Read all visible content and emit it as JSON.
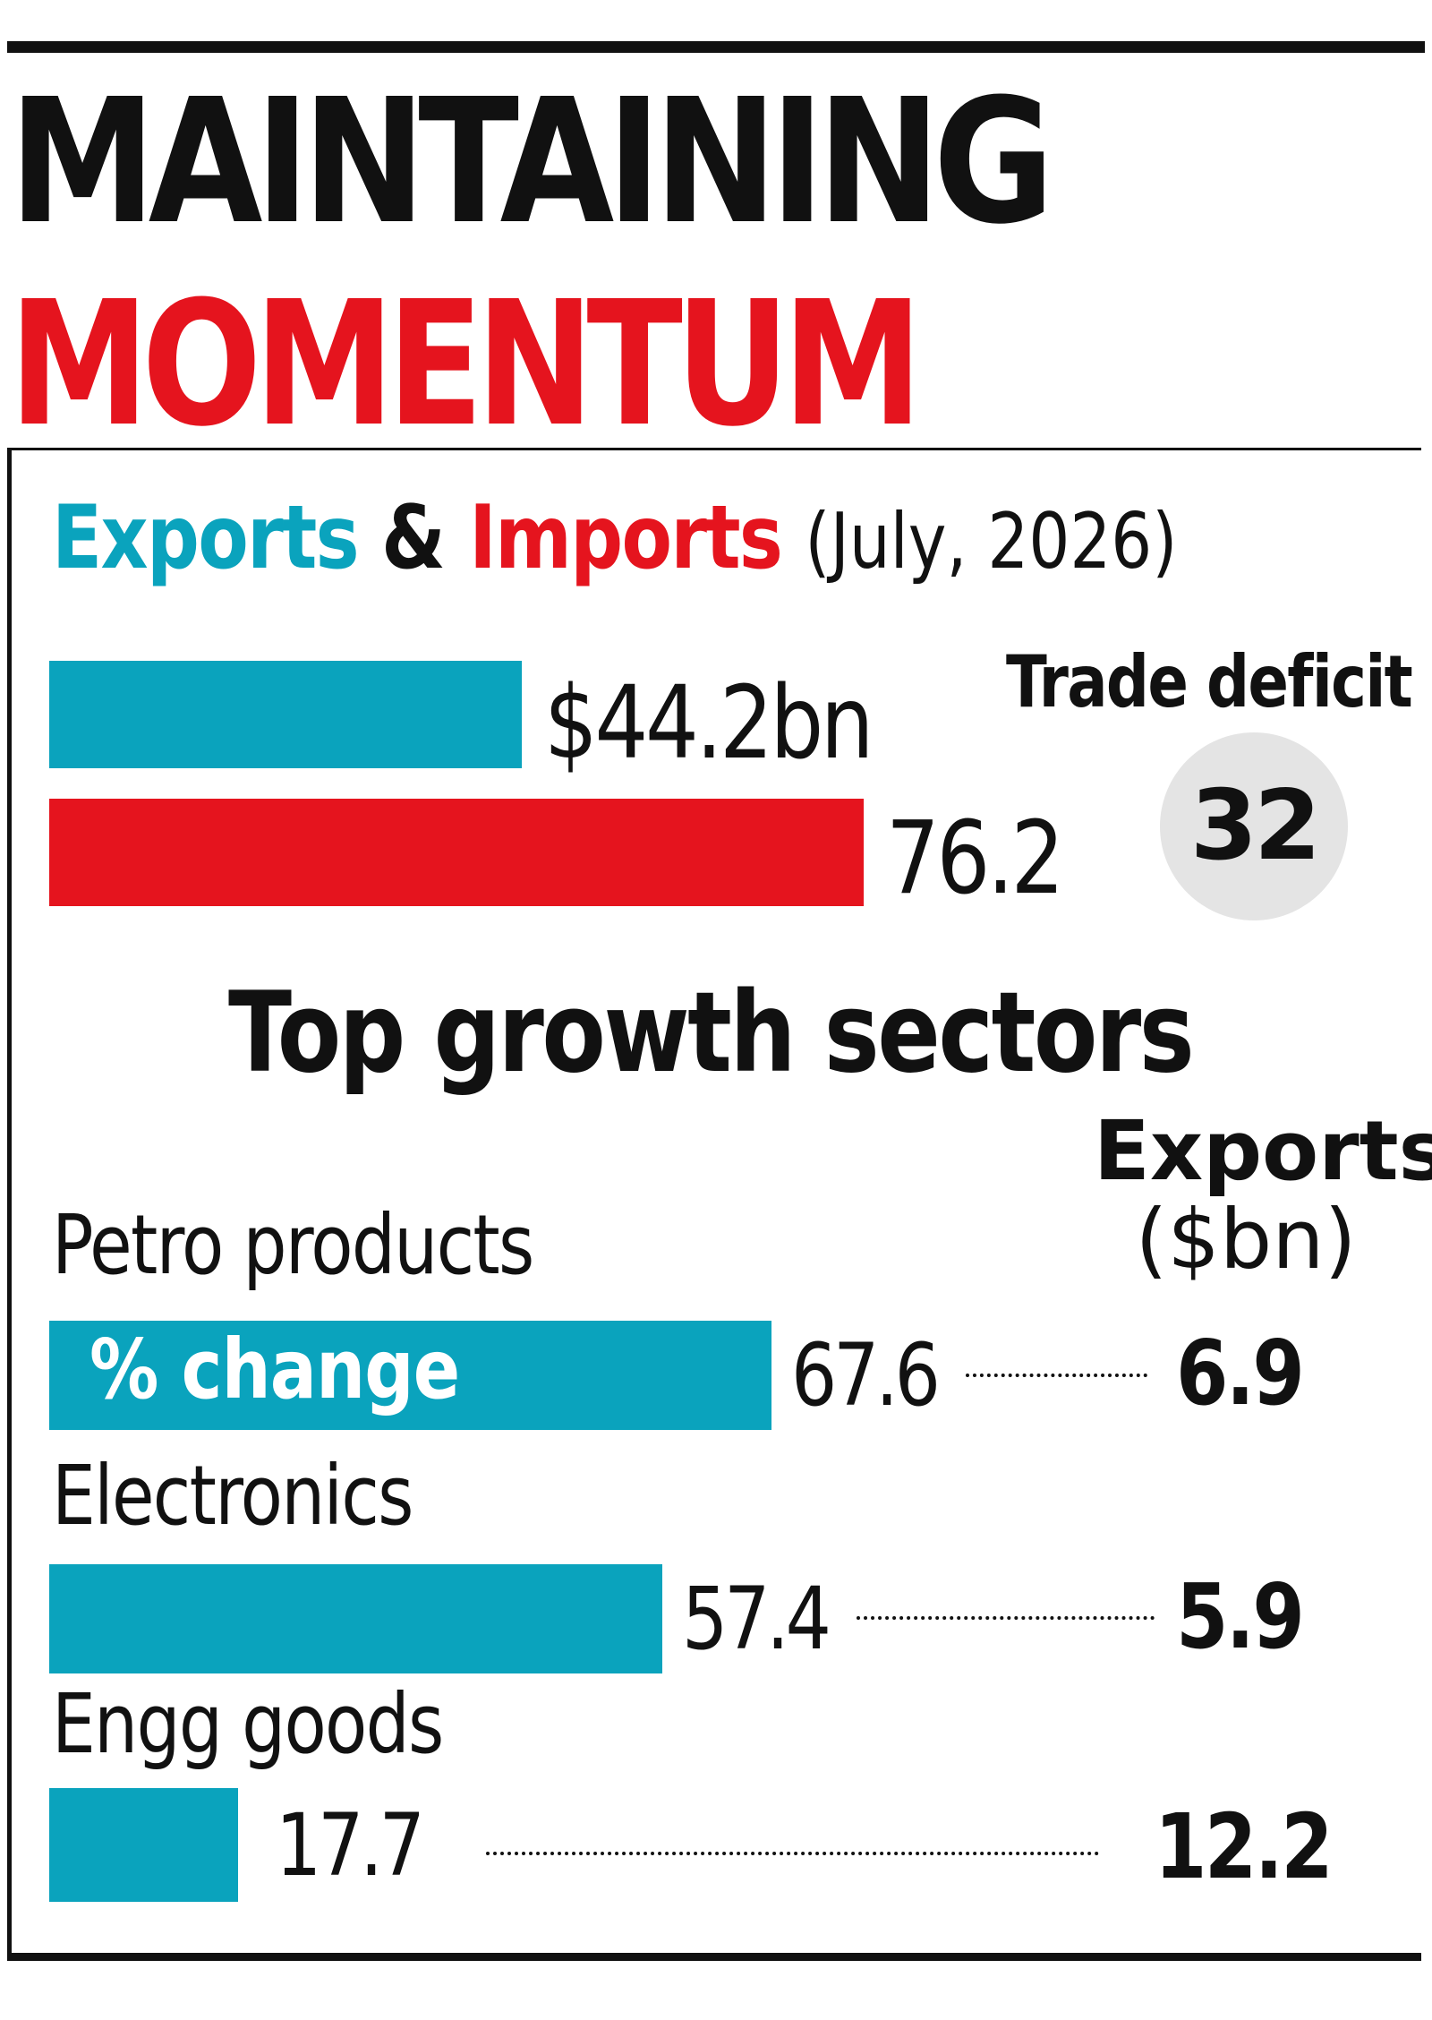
{
  "title": "MAINTAINING",
  "title_highlight": "MOMENTUM",
  "subtitle": {
    "exports": "Exports",
    "amp": "&",
    "imports": "Imports",
    "period": "(July, 2026)"
  },
  "trade_deficit_label": "Trade deficit",
  "trade_deficit_value": "32",
  "sectors_title": "Top growth sectors",
  "exports_column_header": [
    "Exports",
    "($bn)"
  ],
  "bar_tag": "% change",
  "colors": {
    "exports": "#0aa3bd",
    "imports": "#e5141e",
    "deficit_circle": "#e4e4e4",
    "text": "#111111"
  },
  "chart_data": [
    {
      "type": "bar",
      "orientation": "horizontal",
      "title": "Exports & Imports (July, 2026)",
      "categories": [
        "Exports",
        "Imports"
      ],
      "values": [
        44.2,
        76.2
      ],
      "value_labels": [
        "$44.2bn",
        "76.2"
      ],
      "colors": [
        "#0aa3bd",
        "#e5141e"
      ],
      "annotation": {
        "label": "Trade deficit",
        "value": 32
      }
    },
    {
      "type": "bar",
      "orientation": "horizontal",
      "title": "Top growth sectors",
      "categories": [
        "Petro products",
        "Electronics",
        "Engg goods"
      ],
      "values": [
        67.6,
        57.4,
        17.7
      ],
      "value_labels": [
        "67.6",
        "57.4",
        "17.7"
      ],
      "bar_label": "% change",
      "extra_column": {
        "header": "Exports ($bn)",
        "values": [
          6.9,
          5.9,
          12.2
        ],
        "labels": [
          "6.9",
          "5.9",
          "12.2"
        ]
      },
      "color": "#0aa3bd"
    }
  ]
}
